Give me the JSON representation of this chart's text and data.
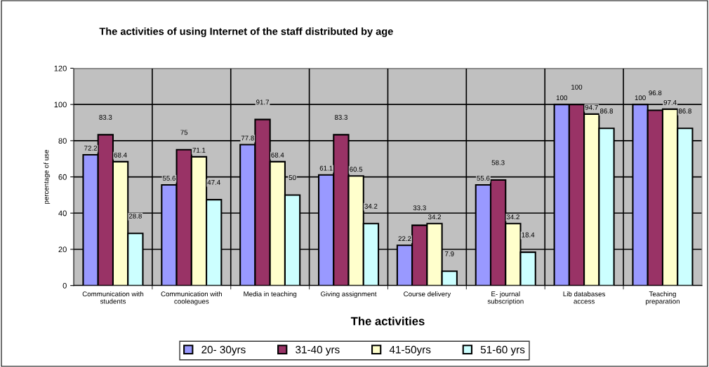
{
  "chart_data": {
    "type": "bar",
    "title": "The activities of using Internet of the staff distributed by age",
    "xlabel": "The activities",
    "ylabel": "percentage of use",
    "categories": [
      "Communication with\nstudents",
      "Communication with\ncooleagues",
      "Media in teaching",
      "Giving assignment",
      "Course delivery",
      "E- journal\nsubscription",
      "Lib databases\naccess",
      "Teaching\npreparation"
    ],
    "series": [
      {
        "name": "20- 30yrs",
        "color": "#9999ff",
        "values": [
          72.2,
          55.6,
          77.8,
          61.1,
          22.2,
          55.6,
          100,
          100
        ]
      },
      {
        "name": "31-40 yrs",
        "color": "#993366",
        "values": [
          83.3,
          75,
          91.7,
          83.3,
          33.3,
          58.3,
          100,
          96.8
        ]
      },
      {
        "name": "41-50yrs",
        "color": "#ffffcc",
        "values": [
          68.4,
          71.1,
          68.4,
          60.5,
          34.2,
          34.2,
          94.7,
          97.4
        ]
      },
      {
        "name": "51-60 yrs",
        "color": "#ccffff",
        "values": [
          28.8,
          47.4,
          50,
          34.2,
          7.9,
          18.4,
          86.8,
          86.8
        ]
      }
    ],
    "ylim": [
      0,
      120
    ],
    "yticks": [
      0,
      20,
      40,
      60,
      80,
      100,
      120
    ],
    "grid": true,
    "legend": "bottom",
    "data_labels": true
  }
}
